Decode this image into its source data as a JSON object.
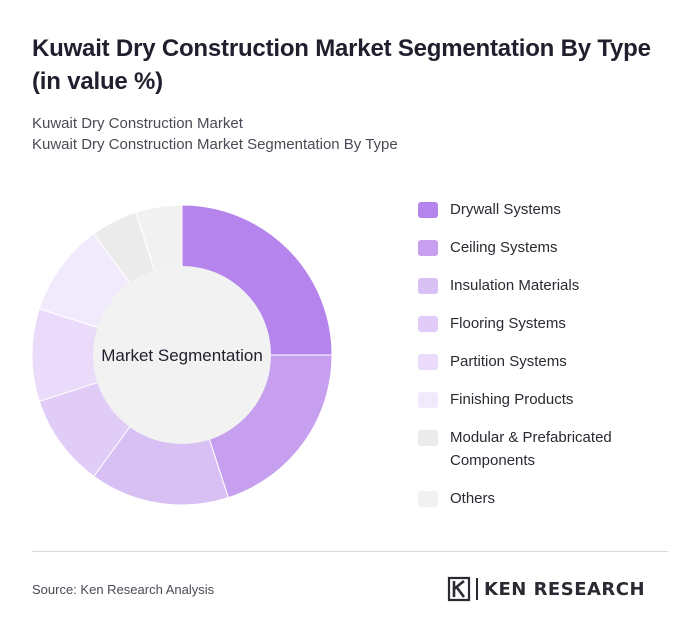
{
  "header": {
    "title": "Kuwait Dry Construction Market Segmentation By Type (in value %)",
    "breadcrumb_1": "Kuwait Dry Construction Market",
    "breadcrumb_2": "Kuwait Dry Construction Market Segmentation By Type"
  },
  "chart_data": {
    "type": "pie",
    "variant": "donut",
    "center_label": "Market Segmentation",
    "categories": [
      "Drywall Systems",
      "Ceiling Systems",
      "Insulation Materials",
      "Flooring Systems",
      "Partition Systems",
      "Finishing Products",
      "Modular & Prefabricated Components",
      "Others"
    ],
    "values": [
      25,
      20,
      15,
      10,
      10,
      10,
      5,
      5
    ],
    "colors": [
      "#b584ec",
      "#c6a0ef",
      "#d8c0f5",
      "#e0ccf6",
      "#e9dbf9",
      "#f1eafc",
      "#ebebeb",
      "#f1f1f1"
    ],
    "legend_position": "right"
  },
  "footer": {
    "source": "Source: Ken Research Analysis",
    "logo_text": "KEN RESEARCH"
  }
}
